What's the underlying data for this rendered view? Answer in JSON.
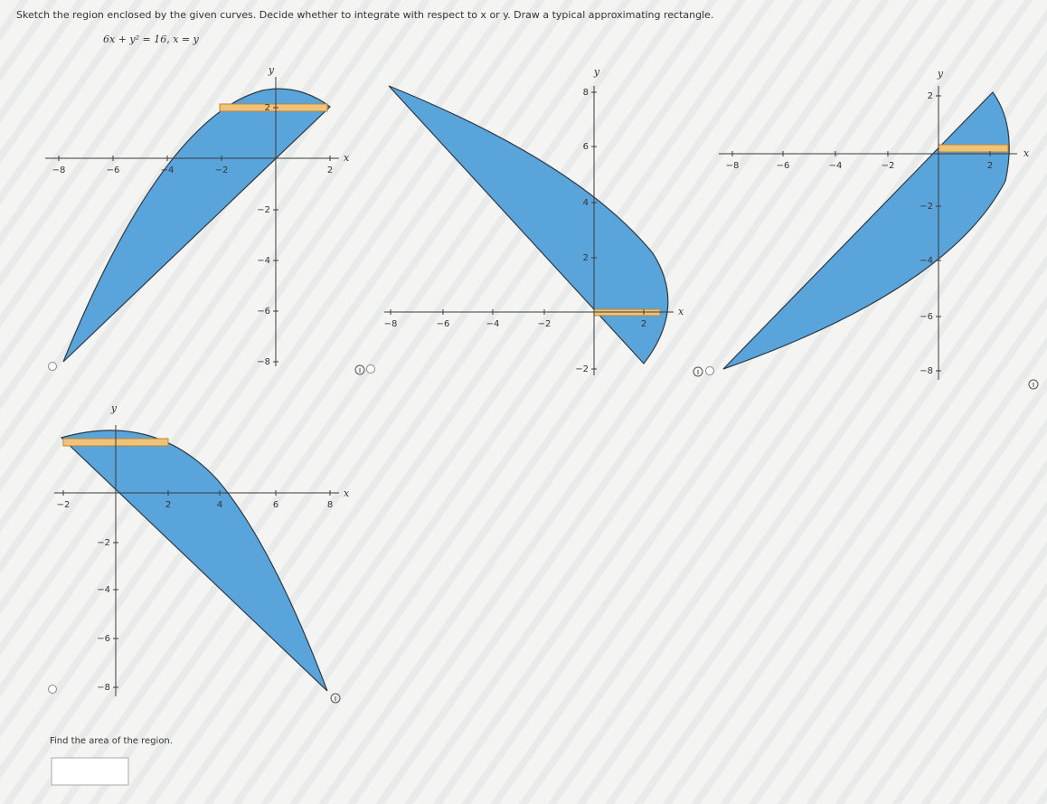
{
  "instruction": "Sketch the region enclosed by the given curves. Decide whether to integrate with respect to x or y. Draw a typical approximating rectangle.",
  "equation": "6x + y² = 16,  x = y",
  "graphs": [
    {
      "x_label": "x",
      "y_label": "y",
      "x_ticks": [
        "−8",
        "−6",
        "−4",
        "−2",
        "2"
      ],
      "y_ticks": [
        "2",
        "−2",
        "−4",
        "−6",
        "−8"
      ]
    },
    {
      "x_label": "x",
      "y_label": "y",
      "x_ticks": [
        "−8",
        "−6",
        "−4",
        "−2",
        "2"
      ],
      "y_ticks": [
        "8",
        "6",
        "4",
        "2",
        "−2"
      ]
    },
    {
      "x_label": "x",
      "y_label": "y",
      "x_ticks": [
        "−8",
        "−6",
        "−4",
        "−2",
        "2"
      ],
      "y_ticks": [
        "2",
        "−2",
        "−4",
        "−6",
        "−8"
      ]
    },
    {
      "x_label": "x",
      "y_label": "y",
      "x_ticks": [
        "−2",
        "2",
        "4",
        "6",
        "8"
      ],
      "y_ticks": [
        "−2",
        "−4",
        "−6",
        "−8"
      ]
    }
  ],
  "question": "Find the area of the region."
}
